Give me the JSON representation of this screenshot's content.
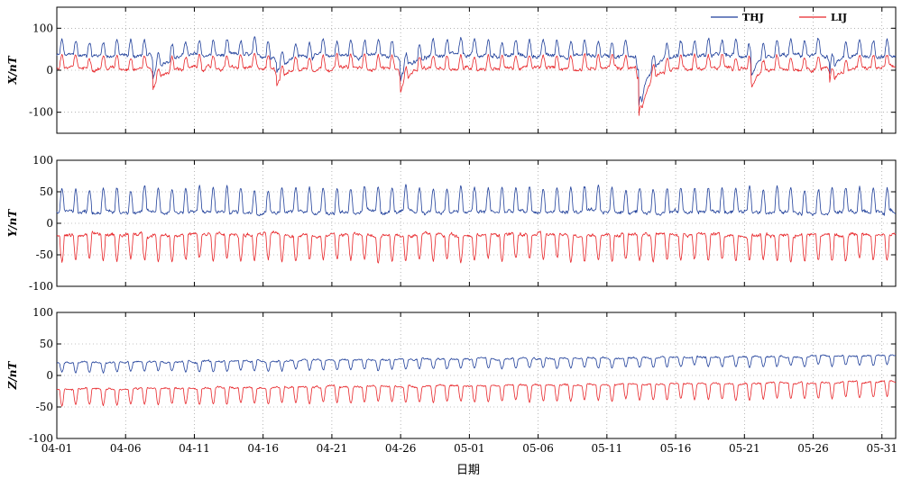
{
  "figure": {
    "xlabel": "日期",
    "x_tick_labels": [
      "04-01",
      "04-06",
      "04-11",
      "04-16",
      "04-21",
      "04-26",
      "05-01",
      "05-06",
      "05-11",
      "05-16",
      "05-21",
      "05-26",
      "05-31"
    ],
    "legend": [
      {
        "name": "THJ",
        "color": "#1f3f9a"
      },
      {
        "name": "LIJ",
        "color": "#e8262a"
      }
    ]
  },
  "chart_data": [
    {
      "type": "line",
      "ylabel": "X/nT",
      "ylim": [
        -150,
        150
      ],
      "yticks": [
        100,
        0,
        -100
      ],
      "xlim": [
        "04-01",
        "06-01"
      ],
      "grid": true,
      "legend_position": "top-right",
      "series": [
        {
          "name": "THJ",
          "color": "#1f3f9a",
          "baseline": 35,
          "daily_amplitude": 35,
          "noise": 10
        },
        {
          "name": "LIJ",
          "color": "#e8262a",
          "baseline": 5,
          "daily_amplitude": 30,
          "noise": 9
        }
      ],
      "disturbances": [
        {
          "day": 7,
          "depth": 55
        },
        {
          "day": 16,
          "depth": 40
        },
        {
          "day": 25,
          "depth": 60
        },
        {
          "day": 42.3,
          "depth": 160
        },
        {
          "day": 50.5,
          "depth": 55
        },
        {
          "day": 56.2,
          "depth": 45
        }
      ]
    },
    {
      "type": "line",
      "ylabel": "Y/nT",
      "ylim": [
        -100,
        100
      ],
      "yticks": [
        100,
        50,
        0,
        -50,
        -100
      ],
      "xlim": [
        "04-01",
        "06-01"
      ],
      "grid": true,
      "series": [
        {
          "name": "THJ",
          "color": "#1f3f9a",
          "baseline": 18,
          "daily_amplitude": 38,
          "noise": 6
        },
        {
          "name": "LIJ",
          "color": "#e8262a",
          "baseline": -18,
          "daily_amplitude": -40,
          "noise": 6
        }
      ]
    },
    {
      "type": "line",
      "ylabel": "Z/nT",
      "ylim": [
        -100,
        100
      ],
      "yticks": [
        100,
        50,
        0,
        -50,
        -100
      ],
      "xlim": [
        "04-01",
        "06-01"
      ],
      "grid": true,
      "series": [
        {
          "name": "THJ",
          "color": "#1f3f9a",
          "baseline": 20,
          "daily_amplitude": -15,
          "noise": 3
        },
        {
          "name": "LIJ",
          "color": "#e8262a",
          "baseline": -22,
          "daily_amplitude": -25,
          "noise": 3
        }
      ]
    }
  ]
}
